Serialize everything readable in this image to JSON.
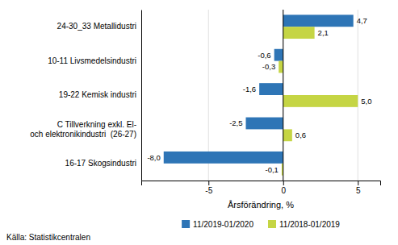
{
  "chart_data": {
    "type": "bar",
    "orientation": "horizontal",
    "categories": [
      "16-17 Skogsindustri",
      "C Tillverkning exkl. El-\noch elektronikindustri  (26-27)",
      "19-22 Kemisk industri",
      "10-11 Livsmedelsindustri",
      "24-30_33 Metallidustri"
    ],
    "series": [
      {
        "name": "11/2019-01/2020",
        "color": "#2e75b6",
        "values": [
          -8.0,
          -2.5,
          -1.6,
          -0.6,
          4.7
        ],
        "value_labels": [
          "-8,0",
          "-2,5",
          "-1,6",
          "-0,6",
          "4,7"
        ]
      },
      {
        "name": "11/2018-01/2019",
        "color": "#c5d544",
        "values": [
          -0.1,
          0.6,
          5.0,
          -0.3,
          2.1
        ],
        "value_labels": [
          "-0,1",
          "0,6",
          "5,0",
          "-0,3",
          "2,1"
        ]
      }
    ],
    "data_labels": true,
    "x_label": "Årsförändring, %",
    "xlim": [
      -9.5,
      6.5
    ],
    "xticks": [
      -5,
      0,
      5
    ],
    "grid": true,
    "legend": "bottom",
    "annotations": [
      "Källa: Statistikcentralen"
    ]
  }
}
